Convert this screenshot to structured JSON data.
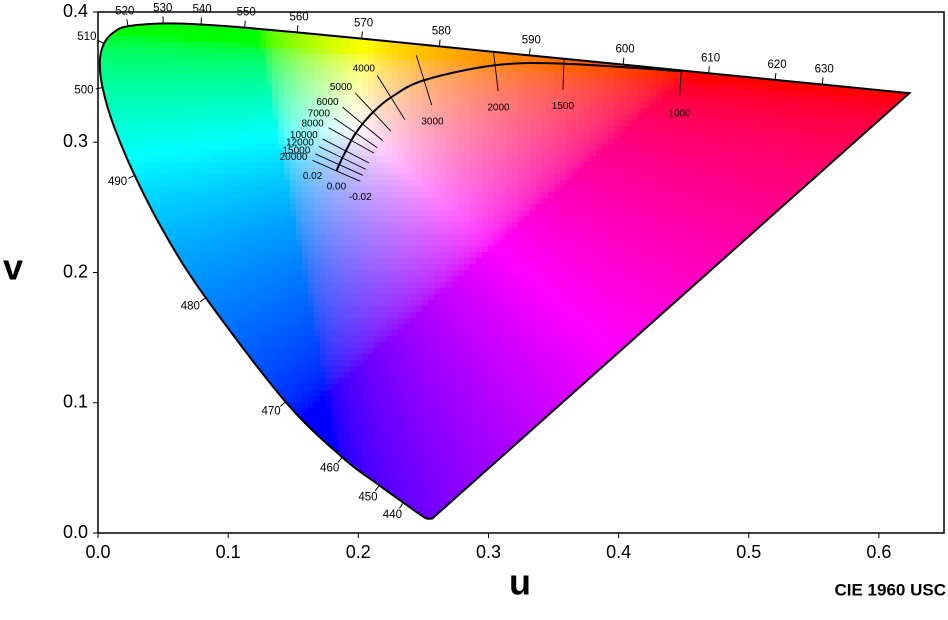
{
  "chart_data": {
    "type": "chromaticity",
    "x_label": "u",
    "y_label": "v",
    "footer": "CIE 1960 USC",
    "xlim": [
      0,
      0.65
    ],
    "ylim": [
      0,
      0.4
    ],
    "xticks": [
      {
        "value": 0,
        "label": "0.0"
      },
      {
        "value": 0.1,
        "label": "0.1"
      },
      {
        "value": 0.2,
        "label": "0.2"
      },
      {
        "value": 0.3,
        "label": "0.3"
      },
      {
        "value": 0.4,
        "label": "0.4"
      },
      {
        "value": 0.5,
        "label": "0.5"
      },
      {
        "value": 0.6,
        "label": "0.6"
      }
    ],
    "yticks": [
      {
        "value": 0,
        "label": "0.0"
      },
      {
        "value": 0.1,
        "label": "0.1"
      },
      {
        "value": 0.2,
        "label": "0.2"
      },
      {
        "value": 0.3,
        "label": "0.3"
      },
      {
        "value": 0.4,
        "label": "0.4"
      }
    ],
    "line_color": "#000000",
    "spectral_locus": {
      "wavelengths": [
        null,
        null,
        null,
        440,
        450,
        460,
        470,
        480,
        null,
        490,
        null,
        500,
        null,
        510,
        null,
        520,
        530,
        540,
        550,
        560,
        570,
        580,
        590,
        600,
        610,
        620,
        630,
        null
      ],
      "u": [
        0.2568,
        0.2522,
        0.2461,
        0.2347,
        0.2161,
        0.1877,
        0.1441,
        0.0828,
        0.0521,
        0.0282,
        0.0119,
        0.0035,
        0.0014,
        0.0046,
        0.0123,
        0.0231,
        0.0501,
        0.0792,
        0.1127,
        0.1531,
        0.2026,
        0.2623,
        0.3315,
        0.4035,
        0.4692,
        0.5203,
        0.5565,
        0.6234
      ],
      "v": [
        0.0111,
        0.0113,
        0.0151,
        0.0233,
        0.0366,
        0.0581,
        0.1007,
        0.1806,
        0.2285,
        0.2745,
        0.3132,
        0.342,
        0.3621,
        0.3759,
        0.3846,
        0.3891,
        0.3912,
        0.3904,
        0.388,
        0.3844,
        0.3796,
        0.3736,
        0.3667,
        0.3596,
        0.353,
        0.3479,
        0.3443,
        0.3377
      ]
    },
    "planckian_locus": {
      "temperatures": [
        1000,
        1500,
        2000,
        3000,
        4000,
        5000,
        6000,
        7000,
        8000,
        10000,
        12000,
        15000,
        20000
      ],
      "u": [
        0.4481,
        0.3579,
        0.3051,
        0.2505,
        0.2251,
        0.2114,
        0.2033,
        0.1981,
        0.1946,
        0.1904,
        0.1877,
        0.1853,
        0.1832
      ],
      "v": [
        0.3546,
        0.3603,
        0.3591,
        0.3476,
        0.3344,
        0.3231,
        0.3141,
        0.3071,
        0.3014,
        0.2933,
        0.288,
        0.2828,
        0.278
      ]
    },
    "isotherm_duv": [
      {
        "value": 0.02,
        "label": "0.02"
      },
      {
        "value": 0,
        "label": "0.00"
      },
      {
        "value": -0.02,
        "label": "-0.02"
      }
    ]
  }
}
